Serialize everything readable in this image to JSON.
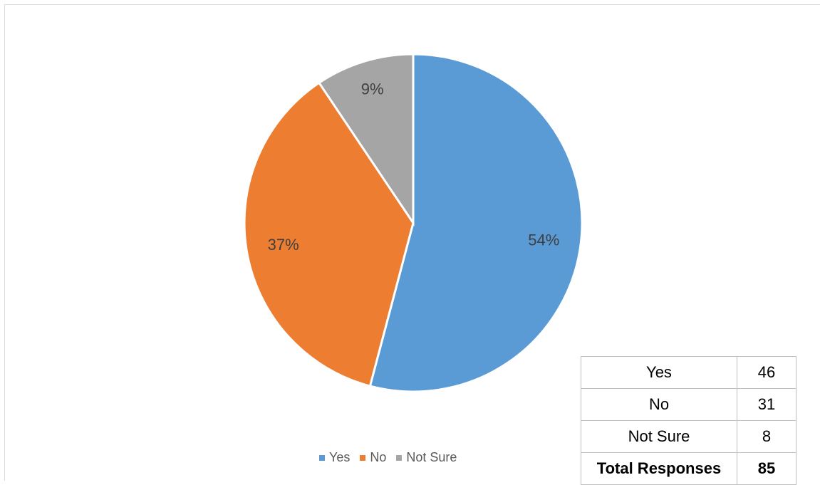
{
  "chart_data": {
    "type": "pie",
    "categories": [
      "Yes",
      "No",
      "Not Sure"
    ],
    "values": [
      46,
      31,
      8
    ],
    "percent_labels": [
      "54%",
      "37%",
      "9%"
    ],
    "colors": [
      "#5b9bd5",
      "#ed7d31",
      "#a5a5a5"
    ],
    "legend": [
      "Yes",
      "No",
      "Not Sure"
    ],
    "legend_position": "bottom"
  },
  "table": {
    "rows": [
      {
        "label": "Yes",
        "value": "46"
      },
      {
        "label": "No",
        "value": "31"
      },
      {
        "label": "Not Sure",
        "value": "8"
      }
    ],
    "total": {
      "label": "Total Responses",
      "value": "85"
    }
  }
}
